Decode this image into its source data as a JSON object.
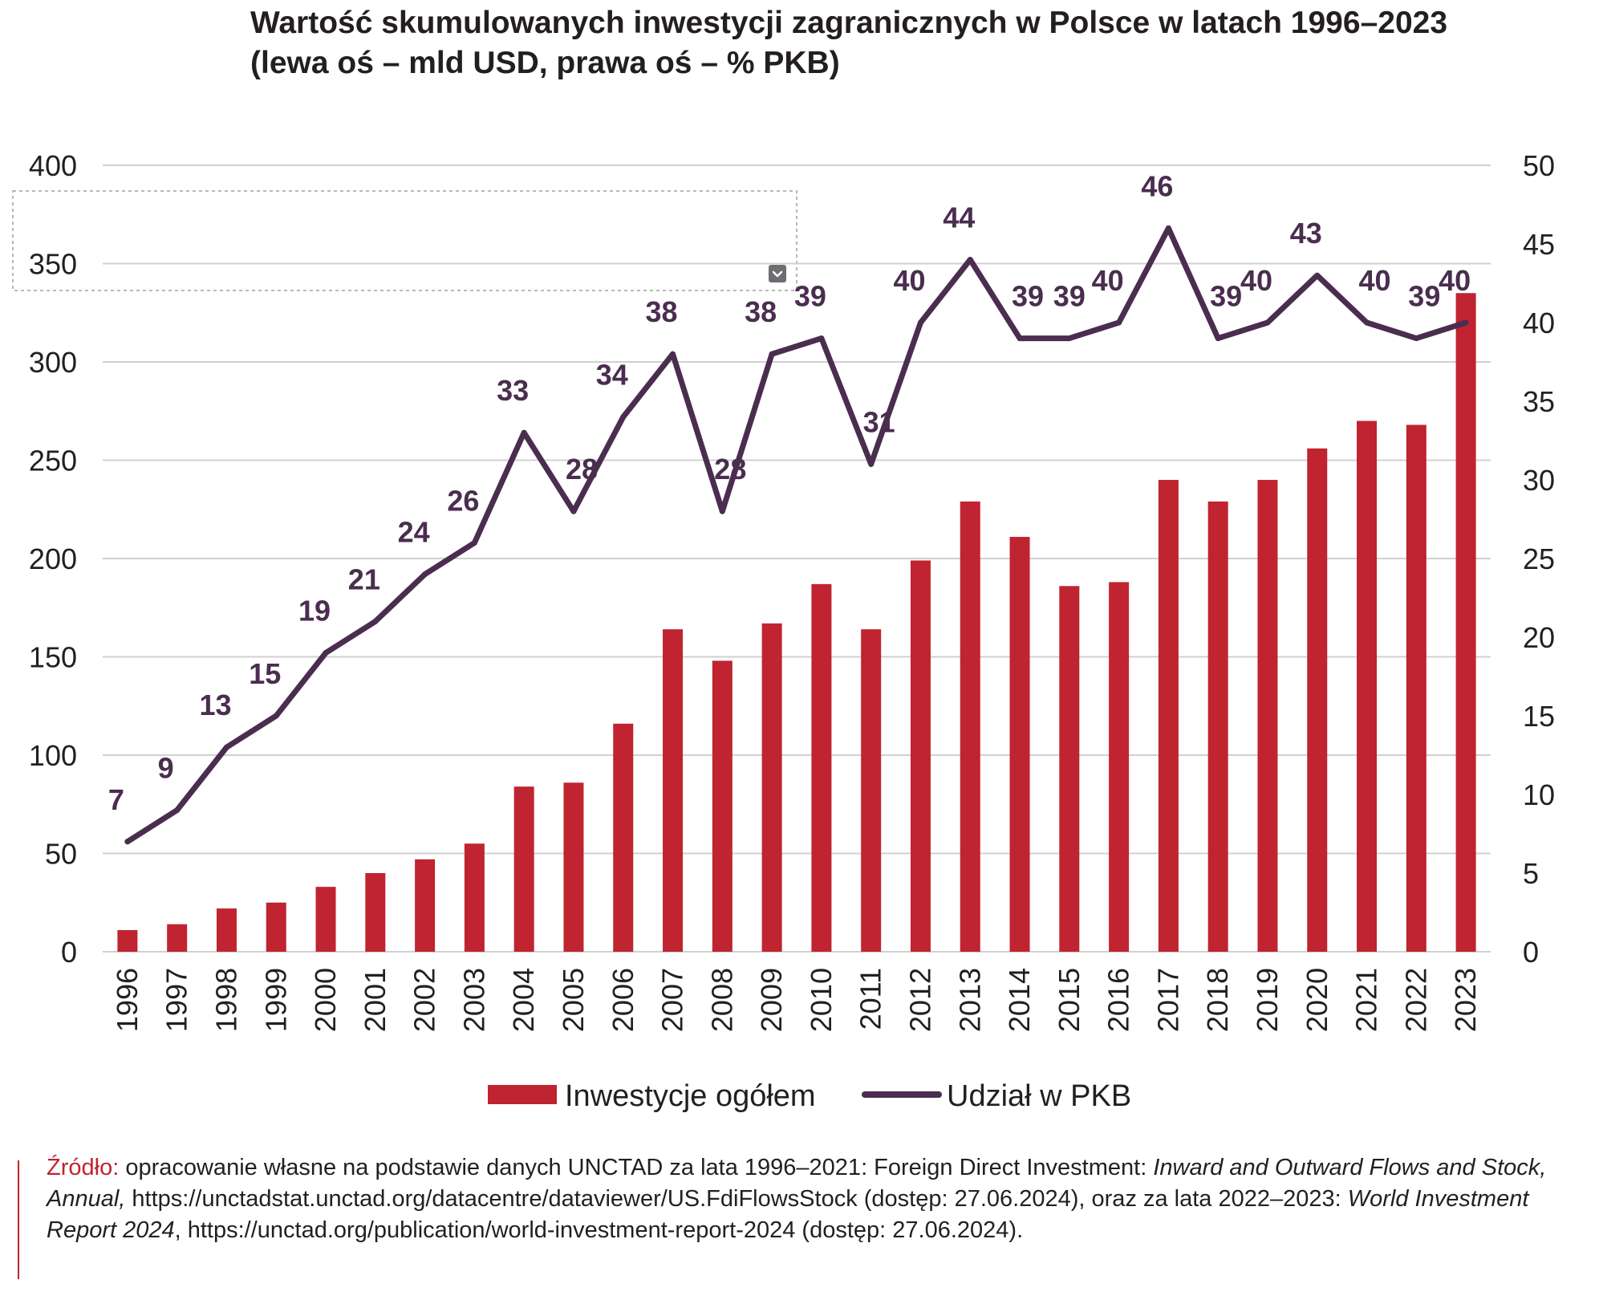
{
  "title": {
    "line1": "Wartość skumulowanych inwestycji zagranicznych w Polsce w latach 1996–2023",
    "line2": "(lewa oś – mld USD, prawa oś – % PKB)"
  },
  "colors": {
    "bars": "#bf2430",
    "line": "#4a2d4f",
    "grid": "#d0d0d0",
    "source_label": "#c0242f"
  },
  "icons": {
    "selection_dropdown": "chevron-down-icon"
  },
  "chart_data": {
    "type": "bar",
    "categories": [
      "1996",
      "1997",
      "1998",
      "1999",
      "2000",
      "2001",
      "2002",
      "2003",
      "2004",
      "2005",
      "2006",
      "2007",
      "2008",
      "2009",
      "2010",
      "2011",
      "2012",
      "2013",
      "2014",
      "2015",
      "2016",
      "2017",
      "2018",
      "2019",
      "2020",
      "2021",
      "2022",
      "2023"
    ],
    "series": [
      {
        "name": "Inwestycje ogółem",
        "type": "bar",
        "axis": "left",
        "values": [
          11,
          14,
          22,
          25,
          33,
          40,
          47,
          55,
          84,
          86,
          116,
          164,
          148,
          167,
          187,
          164,
          199,
          229,
          211,
          186,
          188,
          240,
          229,
          240,
          256,
          270,
          268,
          335
        ]
      },
      {
        "name": "Udział w PKB",
        "type": "line",
        "axis": "right",
        "values": [
          7,
          9,
          13,
          15,
          19,
          21,
          24,
          26,
          33,
          28,
          34,
          38,
          28,
          38,
          39,
          31,
          40,
          44,
          39,
          39,
          40,
          46,
          39,
          40,
          43,
          40,
          39,
          40
        ]
      }
    ],
    "ylim_left": [
      0,
      400
    ],
    "yticks_left": [
      "0",
      "50",
      "100",
      "150",
      "200",
      "250",
      "300",
      "350",
      "400"
    ],
    "ylim_right": [
      0,
      50
    ],
    "yticks_right": [
      "0",
      "5",
      "10",
      "15",
      "20",
      "25",
      "30",
      "35",
      "40",
      "45",
      "50"
    ],
    "grid": true,
    "legend_position": "bottom"
  },
  "source": {
    "label": "Źródło:",
    "part1": " opracowanie własne na podstawie danych UNCTAD za lata 1996–2021: Foreign Direct Investment: ",
    "italic1": "Inward and Outward Flows and Stock, Annual,",
    "part2": " https://unctadstat.unctad.org/datacentre/dataviewer/US.FdiFlowsStock (dostęp: 27.06.2024), oraz za lata 2022–2023: ",
    "italic2": "World Investment Report 2024",
    "part3": ", https://unctad.org/publication/world-investment-report-2024 (dostęp: 27.06.2024)."
  }
}
